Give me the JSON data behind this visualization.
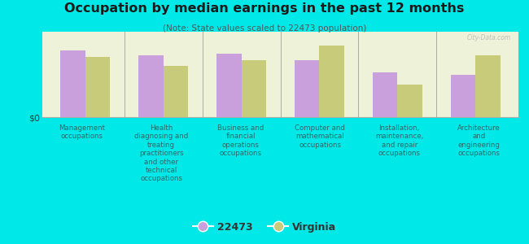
{
  "title": "Occupation by median earnings in the past 12 months",
  "subtitle": "(Note: State values scaled to 22473 population)",
  "categories": [
    "Management\noccupations",
    "Health\ndiagnosing and\ntreating\npractitioners\nand other\ntechnical\noccupations",
    "Business and\nfinancial\noperations\noccupations",
    "Computer and\nmathematical\noccupations",
    "Installation,\nmaintenance,\nand repair\noccupations",
    "Architecture\nand\nengineering\noccupations"
  ],
  "values_22473": [
    0.82,
    0.76,
    0.78,
    0.7,
    0.55,
    0.52
  ],
  "values_virginia": [
    0.74,
    0.63,
    0.7,
    0.88,
    0.4,
    0.76
  ],
  "color_22473": "#c9a0dc",
  "color_virginia": "#c8cc7a",
  "background_color": "#00e8e8",
  "plot_bg_color": "#eef2d8",
  "ylabel": "$0",
  "legend_label_22473": "22473",
  "legend_label_virginia": "Virginia",
  "watermark": "City-Data.com",
  "title_color": "#1a1a1a",
  "subtitle_color": "#555555",
  "label_color": "#336666"
}
